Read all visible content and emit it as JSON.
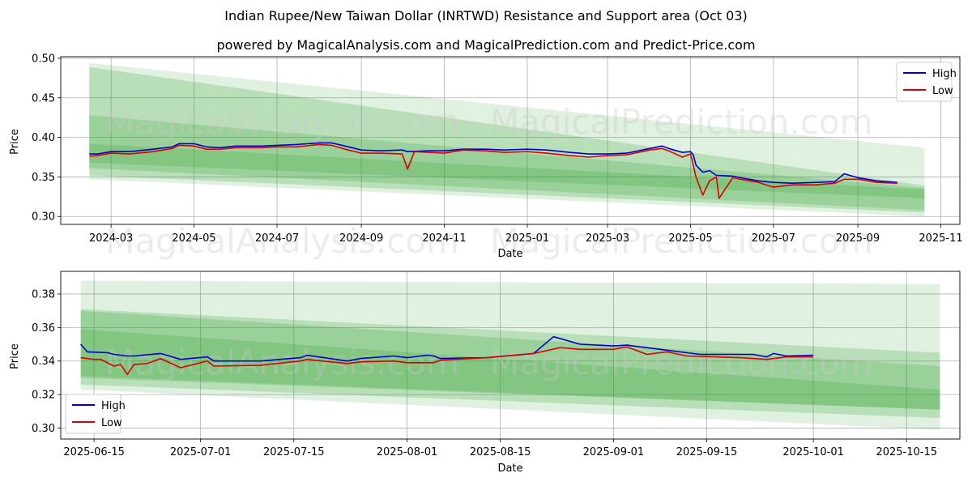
{
  "title": "Indian Rupee/New Taiwan Dollar (INRTWD) Resistance and Support area (Oct 03)",
  "subtitle": "powered by MagicalAnalysis.com and MagicalPrediction.com and Predict-Price.com",
  "watermarks": [
    "MagicalAnalysis.com",
    "MagicalPrediction.com"
  ],
  "colors": {
    "high": "#0000cc",
    "low": "#dd0000",
    "band": "#2e9e2e"
  },
  "chart_data": [
    {
      "type": "line",
      "name": "full-range",
      "xlabel": "Date",
      "ylabel": "Price",
      "xlim": [
        "2024-01-24",
        "2025-11-15"
      ],
      "ylim": [
        0.29,
        0.502
      ],
      "yticks": [
        0.3,
        0.35,
        0.4,
        0.45,
        0.5
      ],
      "ytick_labels": [
        "0.30",
        "0.35",
        "0.40",
        "0.45",
        "0.50"
      ],
      "xticks": [
        "2024-03-01",
        "2024-05-01",
        "2024-07-01",
        "2024-09-01",
        "2024-11-01",
        "2025-01-01",
        "2025-03-01",
        "2025-05-01",
        "2025-07-01",
        "2025-09-01",
        "2025-11-01"
      ],
      "xtick_labels": [
        "2024-03",
        "2024-05",
        "2024-07",
        "2024-09",
        "2024-11",
        "2025-01",
        "2025-03",
        "2025-05",
        "2025-07",
        "2025-09",
        "2025-11"
      ],
      "legend": [
        "High",
        "Low"
      ],
      "legend_position": "top-right",
      "grid": true,
      "bands": [
        {
          "x": [
            "2024-02-14",
            "2025-10-20"
          ],
          "upper": [
            0.494,
            0.387
          ],
          "lower": [
            0.347,
            0.3
          ],
          "opacity": 0.14
        },
        {
          "x": [
            "2024-02-14",
            "2025-10-20"
          ],
          "upper": [
            0.489,
            0.339
          ],
          "lower": [
            0.352,
            0.305
          ],
          "opacity": 0.22
        },
        {
          "x": [
            "2024-02-14",
            "2025-10-20"
          ],
          "upper": [
            0.428,
            0.336
          ],
          "lower": [
            0.361,
            0.308
          ],
          "opacity": 0.22
        },
        {
          "x": [
            "2024-02-14",
            "2025-10-20"
          ],
          "upper": [
            0.392,
            0.334
          ],
          "lower": [
            0.368,
            0.323
          ],
          "opacity": 0.22
        }
      ],
      "series": [
        {
          "name": "High",
          "x": [
            "2024-02-14",
            "2024-02-20",
            "2024-03-01",
            "2024-03-15",
            "2024-04-01",
            "2024-04-15",
            "2024-04-20",
            "2024-05-01",
            "2024-05-10",
            "2024-05-20",
            "2024-06-01",
            "2024-06-20",
            "2024-07-01",
            "2024-07-15",
            "2024-08-01",
            "2024-08-10",
            "2024-08-20",
            "2024-09-01",
            "2024-09-15",
            "2024-10-01",
            "2024-10-05",
            "2024-10-20",
            "2024-11-01",
            "2024-11-15",
            "2024-12-01",
            "2024-12-15",
            "2025-01-01",
            "2025-01-15",
            "2025-02-01",
            "2025-02-15",
            "2025-03-01",
            "2025-03-15",
            "2025-04-01",
            "2025-04-10",
            "2025-04-15",
            "2025-04-25",
            "2025-05-01",
            "2025-05-03",
            "2025-05-05",
            "2025-05-10",
            "2025-05-15",
            "2025-05-20",
            "2025-06-01",
            "2025-06-10",
            "2025-06-20",
            "2025-07-01",
            "2025-07-15",
            "2025-08-01",
            "2025-08-15",
            "2025-08-22",
            "2025-09-01",
            "2025-09-15",
            "2025-09-30"
          ],
          "values": [
            0.379,
            0.379,
            0.382,
            0.382,
            0.385,
            0.388,
            0.392,
            0.392,
            0.388,
            0.387,
            0.389,
            0.389,
            0.39,
            0.391,
            0.393,
            0.393,
            0.389,
            0.384,
            0.383,
            0.384,
            0.382,
            0.383,
            0.383,
            0.385,
            0.385,
            0.384,
            0.385,
            0.384,
            0.381,
            0.379,
            0.379,
            0.38,
            0.386,
            0.389,
            0.386,
            0.381,
            0.382,
            0.378,
            0.365,
            0.356,
            0.358,
            0.352,
            0.351,
            0.348,
            0.345,
            0.343,
            0.342,
            0.343,
            0.344,
            0.354,
            0.349,
            0.345,
            0.343
          ]
        },
        {
          "name": "Low",
          "x": [
            "2024-02-14",
            "2024-02-20",
            "2024-03-01",
            "2024-03-15",
            "2024-04-01",
            "2024-04-15",
            "2024-04-20",
            "2024-05-01",
            "2024-05-10",
            "2024-05-20",
            "2024-06-01",
            "2024-06-20",
            "2024-07-01",
            "2024-07-15",
            "2024-08-01",
            "2024-08-10",
            "2024-08-20",
            "2024-09-01",
            "2024-09-15",
            "2024-10-01",
            "2024-10-05",
            "2024-10-10",
            "2024-10-20",
            "2024-11-01",
            "2024-11-15",
            "2024-12-01",
            "2024-12-15",
            "2025-01-01",
            "2025-01-15",
            "2025-02-01",
            "2025-02-15",
            "2025-03-01",
            "2025-03-15",
            "2025-04-01",
            "2025-04-10",
            "2025-04-15",
            "2025-04-25",
            "2025-05-01",
            "2025-05-03",
            "2025-05-05",
            "2025-05-10",
            "2025-05-15",
            "2025-05-20",
            "2025-05-22",
            "2025-06-01",
            "2025-06-10",
            "2025-06-20",
            "2025-07-01",
            "2025-07-15",
            "2025-08-01",
            "2025-08-15",
            "2025-08-22",
            "2025-09-01",
            "2025-09-15",
            "2025-09-30"
          ],
          "values": [
            0.376,
            0.377,
            0.38,
            0.379,
            0.382,
            0.386,
            0.39,
            0.389,
            0.385,
            0.385,
            0.387,
            0.387,
            0.388,
            0.388,
            0.391,
            0.39,
            0.385,
            0.38,
            0.38,
            0.379,
            0.36,
            0.382,
            0.381,
            0.38,
            0.384,
            0.383,
            0.381,
            0.382,
            0.38,
            0.377,
            0.375,
            0.377,
            0.378,
            0.384,
            0.386,
            0.383,
            0.375,
            0.379,
            0.365,
            0.35,
            0.327,
            0.345,
            0.35,
            0.323,
            0.349,
            0.346,
            0.343,
            0.337,
            0.34,
            0.34,
            0.342,
            0.347,
            0.347,
            0.343,
            0.342
          ]
        }
      ]
    },
    {
      "type": "line",
      "name": "zoom-range",
      "xlabel": "Date",
      "ylabel": "Price",
      "xlim": [
        "2025-06-10",
        "2025-10-23"
      ],
      "ylim": [
        0.2935,
        0.3935
      ],
      "yticks": [
        0.3,
        0.32,
        0.34,
        0.36,
        0.38
      ],
      "ytick_labels": [
        "0.30",
        "0.32",
        "0.34",
        "0.36",
        "0.38"
      ],
      "xticks": [
        "2025-06-15",
        "2025-07-01",
        "2025-07-15",
        "2025-08-01",
        "2025-08-15",
        "2025-09-01",
        "2025-09-15",
        "2025-10-01",
        "2025-10-15"
      ],
      "xtick_labels": [
        "2025-06-15",
        "2025-07-01",
        "2025-07-15",
        "2025-08-01",
        "2025-08-15",
        "2025-09-01",
        "2025-09-15",
        "2025-10-01",
        "2025-10-15"
      ],
      "legend": [
        "High",
        "Low"
      ],
      "legend_position": "bottom-left",
      "grid": true,
      "bands": [
        {
          "x": [
            "2025-06-13",
            "2025-10-20"
          ],
          "upper": [
            0.388,
            0.386
          ],
          "lower": [
            0.323,
            0.299
          ],
          "opacity": 0.14
        },
        {
          "x": [
            "2025-06-13",
            "2025-10-20"
          ],
          "upper": [
            0.371,
            0.345
          ],
          "lower": [
            0.326,
            0.306
          ],
          "opacity": 0.22
        },
        {
          "x": [
            "2025-06-13",
            "2025-10-20"
          ],
          "upper": [
            0.37,
            0.337
          ],
          "lower": [
            0.33,
            0.311
          ],
          "opacity": 0.22
        },
        {
          "x": [
            "2025-06-13",
            "2025-10-20"
          ],
          "upper": [
            0.359,
            0.323
          ],
          "lower": [
            0.331,
            0.311
          ],
          "opacity": 0.22
        }
      ],
      "series": [
        {
          "name": "High",
          "x": [
            "2025-06-13",
            "2025-06-14",
            "2025-06-17",
            "2025-06-18",
            "2025-06-20",
            "2025-06-21",
            "2025-06-25",
            "2025-06-28",
            "2025-07-02",
            "2025-07-03",
            "2025-07-10",
            "2025-07-16",
            "2025-07-17",
            "2025-07-23",
            "2025-07-25",
            "2025-07-30",
            "2025-08-01",
            "2025-08-04",
            "2025-08-05",
            "2025-08-06",
            "2025-08-13",
            "2025-08-20",
            "2025-08-23",
            "2025-08-27",
            "2025-09-01",
            "2025-09-03",
            "2025-09-08",
            "2025-09-14",
            "2025-09-22",
            "2025-09-24",
            "2025-09-25",
            "2025-09-27",
            "2025-10-01"
          ],
          "values": [
            0.35,
            0.3455,
            0.345,
            0.344,
            0.343,
            0.343,
            0.3445,
            0.341,
            0.3425,
            0.34,
            0.34,
            0.342,
            0.3435,
            0.34,
            0.3415,
            0.343,
            0.342,
            0.3435,
            0.343,
            0.3415,
            0.342,
            0.3445,
            0.3545,
            0.35,
            0.349,
            0.3495,
            0.347,
            0.344,
            0.344,
            0.3425,
            0.3445,
            0.343,
            0.3435
          ]
        },
        {
          "name": "Low",
          "x": [
            "2025-06-13",
            "2025-06-15",
            "2025-06-16",
            "2025-06-18",
            "2025-06-19",
            "2025-06-20",
            "2025-06-21",
            "2025-06-23",
            "2025-06-25",
            "2025-06-28",
            "2025-07-02",
            "2025-07-03",
            "2025-07-10",
            "2025-07-16",
            "2025-07-17",
            "2025-07-23",
            "2025-07-25",
            "2025-07-30",
            "2025-08-01",
            "2025-08-05",
            "2025-08-06",
            "2025-08-13",
            "2025-08-20",
            "2025-08-24",
            "2025-08-27",
            "2025-09-01",
            "2025-09-03",
            "2025-09-06",
            "2025-09-09",
            "2025-09-12",
            "2025-09-20",
            "2025-09-24",
            "2025-09-27",
            "2025-10-01"
          ],
          "values": [
            0.342,
            0.341,
            0.341,
            0.337,
            0.338,
            0.332,
            0.338,
            0.3385,
            0.3415,
            0.336,
            0.34,
            0.337,
            0.3375,
            0.34,
            0.341,
            0.3385,
            0.3395,
            0.34,
            0.339,
            0.339,
            0.3405,
            0.342,
            0.3445,
            0.348,
            0.347,
            0.347,
            0.3485,
            0.344,
            0.3455,
            0.343,
            0.342,
            0.341,
            0.3425,
            0.3425
          ]
        }
      ]
    }
  ]
}
